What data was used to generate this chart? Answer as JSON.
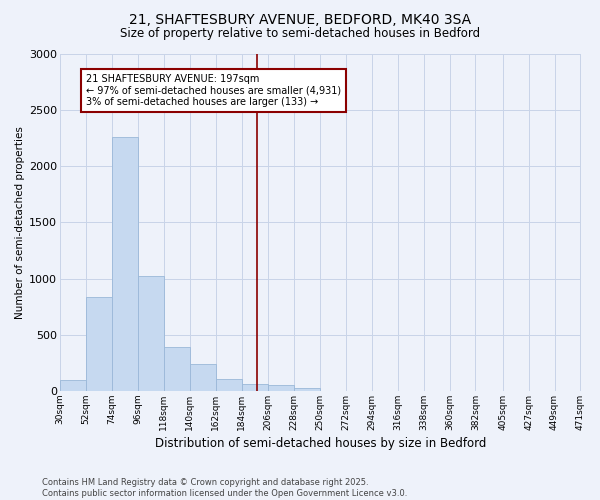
{
  "title": "21, SHAFTESBURY AVENUE, BEDFORD, MK40 3SA",
  "subtitle": "Size of property relative to semi-detached houses in Bedford",
  "xlabel": "Distribution of semi-detached houses by size in Bedford",
  "ylabel": "Number of semi-detached properties",
  "footer_line1": "Contains HM Land Registry data © Crown copyright and database right 2025.",
  "footer_line2": "Contains public sector information licensed under the Open Government Licence v3.0.",
  "annotation_line1": "21 SHAFTESBURY AVENUE: 197sqm",
  "annotation_line2": "← 97% of semi-detached houses are smaller (4,931)",
  "annotation_line3": "3% of semi-detached houses are larger (133) →",
  "property_size": 197,
  "bin_edges": [
    30,
    52,
    74,
    96,
    118,
    140,
    162,
    184,
    206,
    228,
    250,
    272,
    294,
    316,
    338,
    360,
    382,
    405,
    427,
    449,
    471
  ],
  "bin_labels": [
    "30sqm",
    "52sqm",
    "74sqm",
    "96sqm",
    "118sqm",
    "140sqm",
    "162sqm",
    "184sqm",
    "206sqm",
    "228sqm",
    "250sqm",
    "272sqm",
    "294sqm",
    "316sqm",
    "338sqm",
    "360sqm",
    "382sqm",
    "405sqm",
    "427sqm",
    "449sqm",
    "471sqm"
  ],
  "bar_heights": [
    100,
    840,
    2260,
    1020,
    395,
    240,
    110,
    65,
    50,
    30,
    0,
    0,
    0,
    0,
    0,
    0,
    0,
    0,
    0,
    0
  ],
  "bar_color": "#c6d9f0",
  "bar_edge_color": "#9ab8d8",
  "vline_color": "#8b0000",
  "vline_x": 197,
  "annotation_box_color": "#8b0000",
  "ylim": [
    0,
    3000
  ],
  "yticks": [
    0,
    500,
    1000,
    1500,
    2000,
    2500,
    3000
  ],
  "grid_color": "#c8d4e8",
  "bg_color": "#eef2fa"
}
